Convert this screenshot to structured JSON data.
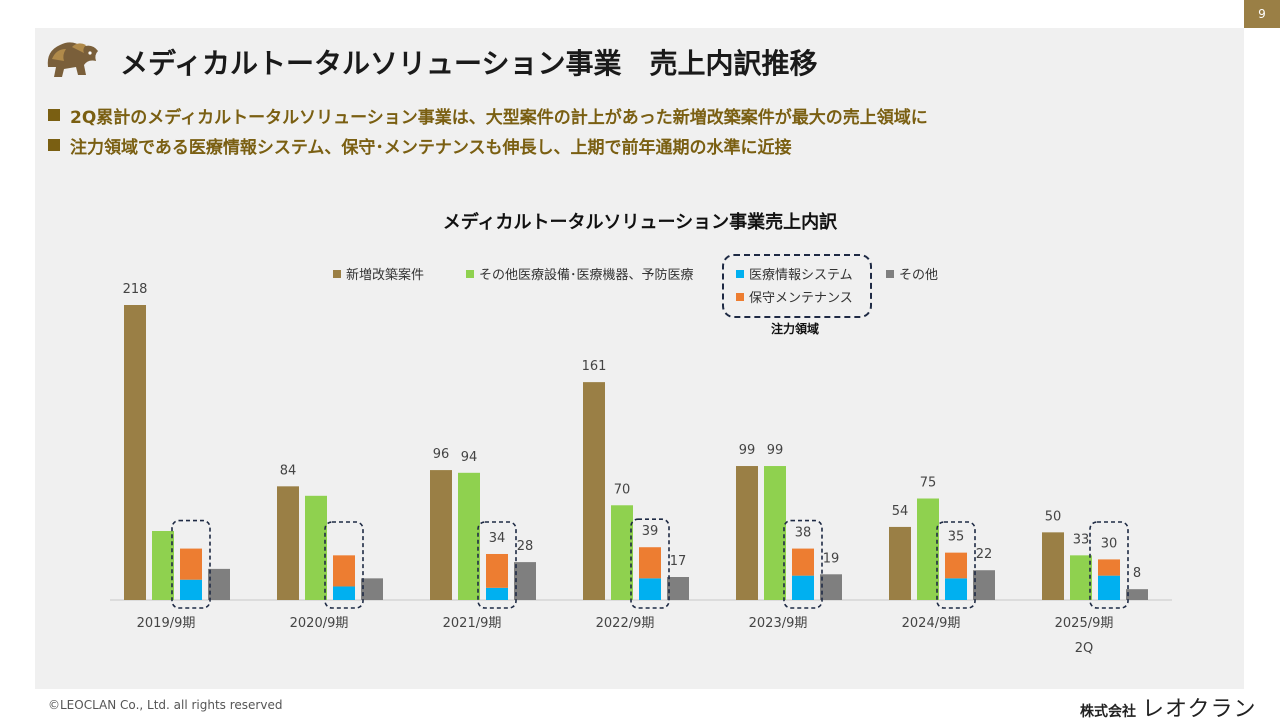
{
  "page_number": "9",
  "title": "メディカルトータルソリューション事業　売上内訳推移",
  "bullets": [
    "2Q累計のメディカルトータルソリューション事業は、大型案件の計上があった新増改築案件が最大の売上領域に",
    "注力領域である医療情報システム、保守･メンテナンスも伸長し、上期で前年通期の水準に近接"
  ],
  "focus_label": "注力領域",
  "footer": {
    "copyright": "©LEOCLAN Co., Ltd. all rights reserved",
    "company_prefix": "株式会社",
    "company_brand": "レオクラン"
  },
  "colors": {
    "shinzou": "#9a7f45",
    "other_medical": "#8fd14f",
    "info_system": "#00b0f0",
    "maintenance": "#ed7d31",
    "other": "#7f7f7f",
    "focus_border": "#1e2a44"
  },
  "chart_data": {
    "type": "bar",
    "title": "メディカルトータルソリューション事業売上内訳",
    "categories": [
      "2019/9期",
      "2020/9期",
      "2021/9期",
      "2022/9期",
      "2023/9期",
      "2024/9期",
      "2025/9期"
    ],
    "category_sublabels": [
      "",
      "",
      "",
      "",
      "",
      "",
      "2Q"
    ],
    "ylim": [
      0,
      230
    ],
    "series": [
      {
        "name": "新増改築案件",
        "values": [
          218,
          84,
          96,
          161,
          99,
          54,
          50
        ],
        "labels": [
          "218",
          "84",
          "96",
          "161",
          "99",
          "54",
          "50"
        ],
        "color": "#9a7f45"
      },
      {
        "name": "その他医療設備･医療機器、予防医療",
        "values": [
          51,
          77,
          94,
          70,
          99,
          75,
          33
        ],
        "labels": [
          "",
          "",
          "94",
          "70",
          "99",
          "75",
          "33"
        ],
        "color": "#8fd14f"
      },
      {
        "name": "医療情報システム",
        "stacked": true,
        "values": [
          15,
          10,
          9,
          16,
          18,
          16,
          18
        ],
        "color": "#00b0f0"
      },
      {
        "name": "保守メンテナンス",
        "stacked": true,
        "values": [
          23,
          23,
          25,
          23,
          20,
          19,
          12
        ],
        "color": "#ed7d31"
      },
      {
        "name": "その他",
        "values": [
          23,
          16,
          28,
          17,
          19,
          22,
          8
        ],
        "labels": [
          "",
          "",
          "28",
          "17",
          "19",
          "22",
          "8"
        ],
        "color": "#7f7f7f"
      }
    ],
    "stack_totals": [
      "",
      "",
      "34",
      "39",
      "38",
      "35",
      "30"
    ]
  }
}
